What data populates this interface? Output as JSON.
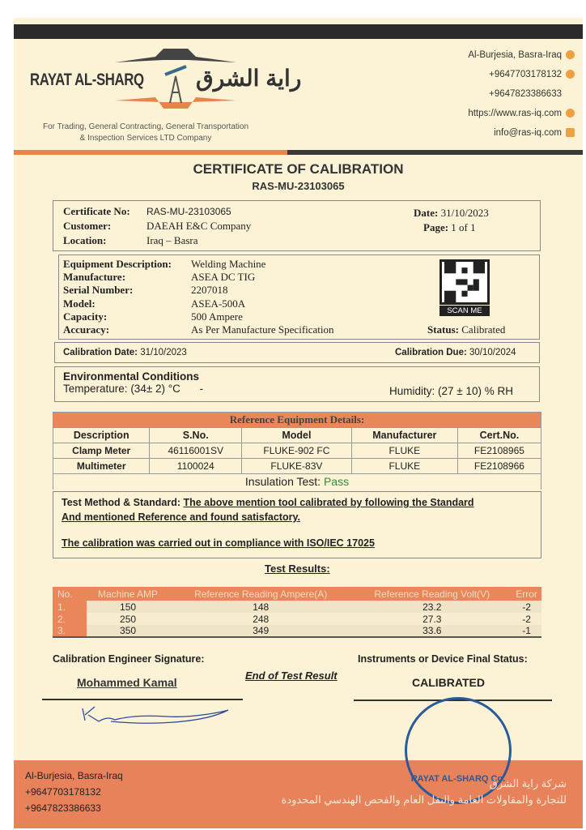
{
  "header": {
    "company_en": "RAYAT AL-SHARQ",
    "company_ar": "راية الشرق",
    "tagline1": "For Trading, General Contracting, General Transportation",
    "tagline2": "& Inspection Services LTD Company",
    "contacts": [
      {
        "text": "Al-Burjesia, Basra-Iraq",
        "icon": "location-icon"
      },
      {
        "text": "+9647703178132",
        "icon": "phone-icon"
      },
      {
        "text": "+9647823386633",
        "icon": ""
      },
      {
        "text": "https://www.ras-iq.com",
        "icon": "web-icon"
      },
      {
        "text": "info@ras-iq.com",
        "icon": "mail-icon"
      }
    ]
  },
  "title": "CERTIFICATE OF CALIBRATION",
  "cert_id": "RAS-MU-23103065",
  "info": {
    "cert_label": "Certificate No:",
    "cert_value": "RAS-MU-23103065",
    "customer_label": "Customer:",
    "customer_value": "DAEAH E&C Company",
    "location_label": "Location:",
    "location_value": "Iraq – Basra",
    "date_label": "Date:",
    "date_value": "31/10/2023",
    "page_label": "Page:",
    "page_value": "1 of 1"
  },
  "equipment": {
    "rows": [
      {
        "label": "Equipment Description:",
        "value": "Welding Machine"
      },
      {
        "label": "Manufacture:",
        "value": "ASEA DC TIG"
      },
      {
        "label": "Serial Number:",
        "value": "2207018"
      },
      {
        "label": "Model:",
        "value": "ASEA-500A"
      },
      {
        "label": "Capacity:",
        "value": "500 Ampere"
      },
      {
        "label": "Accuracy:",
        "value": "As Per Manufacture Specification"
      }
    ],
    "scan_label": "SCAN ME",
    "status_label": "Status:",
    "status_value": "Calibrated"
  },
  "dates": {
    "cal_label": "Calibration Date:",
    "cal_value": "31/10/2023",
    "due_label": "Calibration Due:",
    "due_value": "30/10/2024"
  },
  "env": {
    "title": "Environmental Conditions",
    "temp_label": "Temperature:",
    "temp_value": "(34± 2) °C",
    "dash": "-",
    "hum_label": "Humidity:",
    "hum_value": "(27 ± 10) % RH"
  },
  "reference": {
    "title": "Reference Equipment Details:",
    "headers": [
      "Description",
      "S.No.",
      "Model",
      "Manufacturer",
      "Cert.No."
    ],
    "rows": [
      [
        "Clamp Meter",
        "46116001SV",
        "FLUKE-902 FC",
        "FLUKE",
        "FE2108965"
      ],
      [
        "Multimeter",
        "1100024",
        "FLUKE-83V",
        "FLUKE",
        "FE2108966"
      ]
    ],
    "insulation_label": "Insulation Test:",
    "insulation_value": "Pass"
  },
  "method": {
    "label": "Test Method & Standard:",
    "text1": "The above mention tool calibrated by following the Standard",
    "text2": "And mentioned Reference and found satisfactory.",
    "compliance": "The calibration was carried out in compliance with ISO/IEC 17025"
  },
  "results": {
    "title": "Test Results:",
    "headers": [
      "No.",
      "Machine AMP",
      "Reference Reading Ampere(A)",
      "Reference Reading Volt(V)",
      "Error"
    ],
    "rows": [
      [
        "1.",
        "150",
        "148",
        "23.2",
        "-2"
      ],
      [
        "2.",
        "250",
        "248",
        "27.3",
        "-2"
      ],
      [
        "3.",
        "350",
        "349",
        "33.6",
        "-1"
      ]
    ]
  },
  "signoff": {
    "engineer_label": "Calibration Engineer Signature:",
    "engineer_name": "Mohammed Kamal",
    "end_text": "End of Test Result",
    "status_label": "Instruments or Device Final Status:",
    "status_value": "CALIBRATED",
    "stamp_text": "RAYAT AL-SHARQ Co."
  },
  "footer": {
    "lines": [
      "Al-Burjesia, Basra-Iraq",
      "+9647703178132",
      "+9647823386633"
    ],
    "ar1": "شركة راية الشرق",
    "ar2": "للتجارة والمقاولات العامة والنقل العام والفحص الهندسي المحدودة"
  },
  "colors": {
    "accent": "#e8825a",
    "cream": "#fcf3d6",
    "pass": "#3a8a3a"
  }
}
